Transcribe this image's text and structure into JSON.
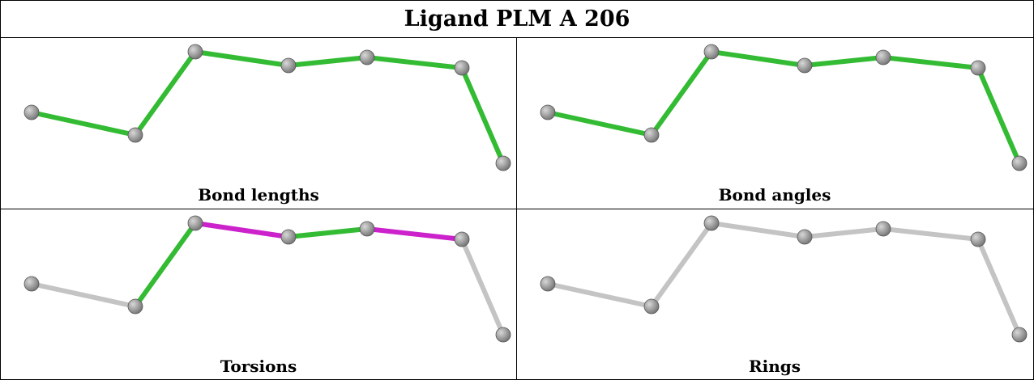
{
  "title": "Ligand PLM A 206",
  "colors": {
    "ok": "#33bb33",
    "outlier": "#cc22cc",
    "neutral": "#c4c4c4",
    "atom": "#7a7a7a"
  },
  "panels": [
    {
      "label": "Bond lengths",
      "bonds": [
        "ok",
        "ok",
        "ok",
        "ok",
        "ok",
        "ok"
      ]
    },
    {
      "label": "Bond angles",
      "bonds": [
        "ok",
        "ok",
        "ok",
        "ok",
        "ok",
        "ok"
      ]
    },
    {
      "label": "Torsions",
      "bonds": [
        "neutral",
        "ok",
        "outlier",
        "ok",
        "outlier",
        "neutral"
      ]
    },
    {
      "label": "Rings",
      "bonds": [
        "neutral",
        "neutral",
        "neutral",
        "neutral",
        "neutral",
        "neutral"
      ]
    }
  ]
}
